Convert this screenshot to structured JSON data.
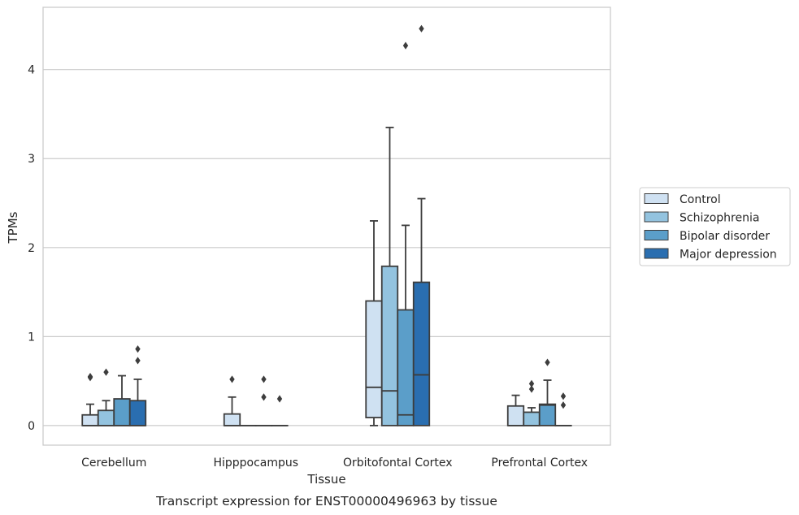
{
  "chart_data": {
    "type": "box",
    "title": "",
    "caption": "Transcript expression for ENST00000496963 by tissue",
    "xlabel": "Tissue",
    "ylabel": "TPMs",
    "ylim": [
      -0.22,
      4.7
    ],
    "yticks": [
      0,
      1,
      2,
      3,
      4
    ],
    "grid": "horizontal",
    "legend_position": "right",
    "categories": [
      "Cerebellum",
      "Hipppocampus",
      "Orbitofontal Cortex",
      "Prefrontal Cortex"
    ],
    "series": [
      {
        "name": "Control",
        "color": "#cfe1f2",
        "boxes": [
          {
            "q1": 0.0,
            "median": 0.0,
            "q3": 0.12,
            "whisker_low": 0.0,
            "whisker_high": 0.24,
            "outliers": [
              0.55,
              0.54
            ]
          },
          {
            "q1": 0.0,
            "median": 0.0,
            "q3": 0.13,
            "whisker_low": 0.0,
            "whisker_high": 0.32,
            "outliers": [
              0.52
            ]
          },
          {
            "q1": 0.09,
            "median": 0.43,
            "q3": 1.4,
            "whisker_low": 0.0,
            "whisker_high": 2.3,
            "outliers": []
          },
          {
            "q1": 0.0,
            "median": 0.0,
            "q3": 0.22,
            "whisker_low": 0.0,
            "whisker_high": 0.34,
            "outliers": []
          }
        ]
      },
      {
        "name": "Schizophrenia",
        "color": "#93c3df",
        "boxes": [
          {
            "q1": 0.0,
            "median": 0.0,
            "q3": 0.17,
            "whisker_low": 0.0,
            "whisker_high": 0.28,
            "outliers": [
              0.6
            ]
          },
          {
            "q1": 0.0,
            "median": 0.0,
            "q3": 0.0,
            "whisker_low": 0.0,
            "whisker_high": 0.0,
            "outliers": []
          },
          {
            "q1": 0.0,
            "median": 0.39,
            "q3": 1.79,
            "whisker_low": 0.0,
            "whisker_high": 3.35,
            "outliers": []
          },
          {
            "q1": 0.0,
            "median": 0.0,
            "q3": 0.15,
            "whisker_low": 0.0,
            "whisker_high": 0.2,
            "outliers": [
              0.47,
              0.41
            ]
          }
        ]
      },
      {
        "name": "Bipolar disorder",
        "color": "#5b9ec9",
        "boxes": [
          {
            "q1": 0.0,
            "median": 0.0,
            "q3": 0.3,
            "whisker_low": 0.0,
            "whisker_high": 0.56,
            "outliers": []
          },
          {
            "q1": 0.0,
            "median": 0.0,
            "q3": 0.0,
            "whisker_low": 0.0,
            "whisker_high": 0.0,
            "outliers": [
              0.52,
              0.32
            ]
          },
          {
            "q1": 0.0,
            "median": 0.12,
            "q3": 1.3,
            "whisker_low": 0.0,
            "whisker_high": 2.25,
            "outliers": [
              4.27
            ]
          },
          {
            "q1": 0.0,
            "median": 0.23,
            "q3": 0.24,
            "whisker_low": 0.0,
            "whisker_high": 0.51,
            "outliers": [
              0.71
            ]
          }
        ]
      },
      {
        "name": "Major depression",
        "color": "#2a6eb0",
        "boxes": [
          {
            "q1": 0.0,
            "median": 0.0,
            "q3": 0.28,
            "whisker_low": 0.0,
            "whisker_high": 0.52,
            "outliers": [
              0.86,
              0.73
            ]
          },
          {
            "q1": 0.0,
            "median": 0.0,
            "q3": 0.0,
            "whisker_low": 0.0,
            "whisker_high": 0.0,
            "outliers": [
              0.3
            ]
          },
          {
            "q1": 0.0,
            "median": 0.57,
            "q3": 1.61,
            "whisker_low": 0.0,
            "whisker_high": 2.55,
            "outliers": [
              4.46
            ]
          },
          {
            "q1": 0.0,
            "median": 0.0,
            "q3": 0.0,
            "whisker_low": 0.0,
            "whisker_high": 0.0,
            "outliers": [
              0.33,
              0.23
            ]
          }
        ]
      }
    ]
  }
}
